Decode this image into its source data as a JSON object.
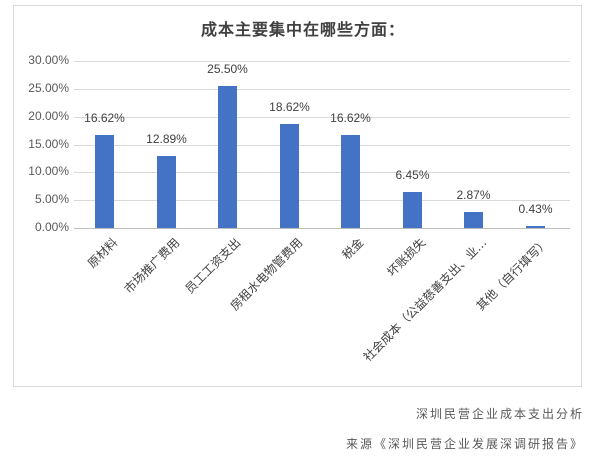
{
  "chart_data": {
    "type": "bar",
    "title": "成本主要集中在哪些方面：",
    "categories": [
      "原材料",
      "市场推广费用",
      "员工工资支出",
      "房租水电物管费用",
      "税金",
      "坏账损失",
      "社会成本（公益慈善支出、业…",
      "其他（自行填写）"
    ],
    "values": [
      16.62,
      12.89,
      25.5,
      18.62,
      16.62,
      6.45,
      2.87,
      0.43
    ],
    "data_labels": [
      "16.62%",
      "12.89%",
      "25.50%",
      "18.62%",
      "16.62%",
      "6.45%",
      "2.87%",
      "0.43%"
    ],
    "xlabel": "",
    "ylabel": "",
    "ylim": [
      0,
      30
    ],
    "yticks": [
      "30.00%",
      "25.00%",
      "20.00%",
      "15.00%",
      "10.00%",
      "5.00%",
      "0.00%"
    ],
    "grid": true,
    "legend": null,
    "bar_color": "#4472c4"
  },
  "captions": {
    "line1": "深圳民营企业成本支出分析",
    "line2": "来源《深圳民营企业发展深调研报告》"
  }
}
